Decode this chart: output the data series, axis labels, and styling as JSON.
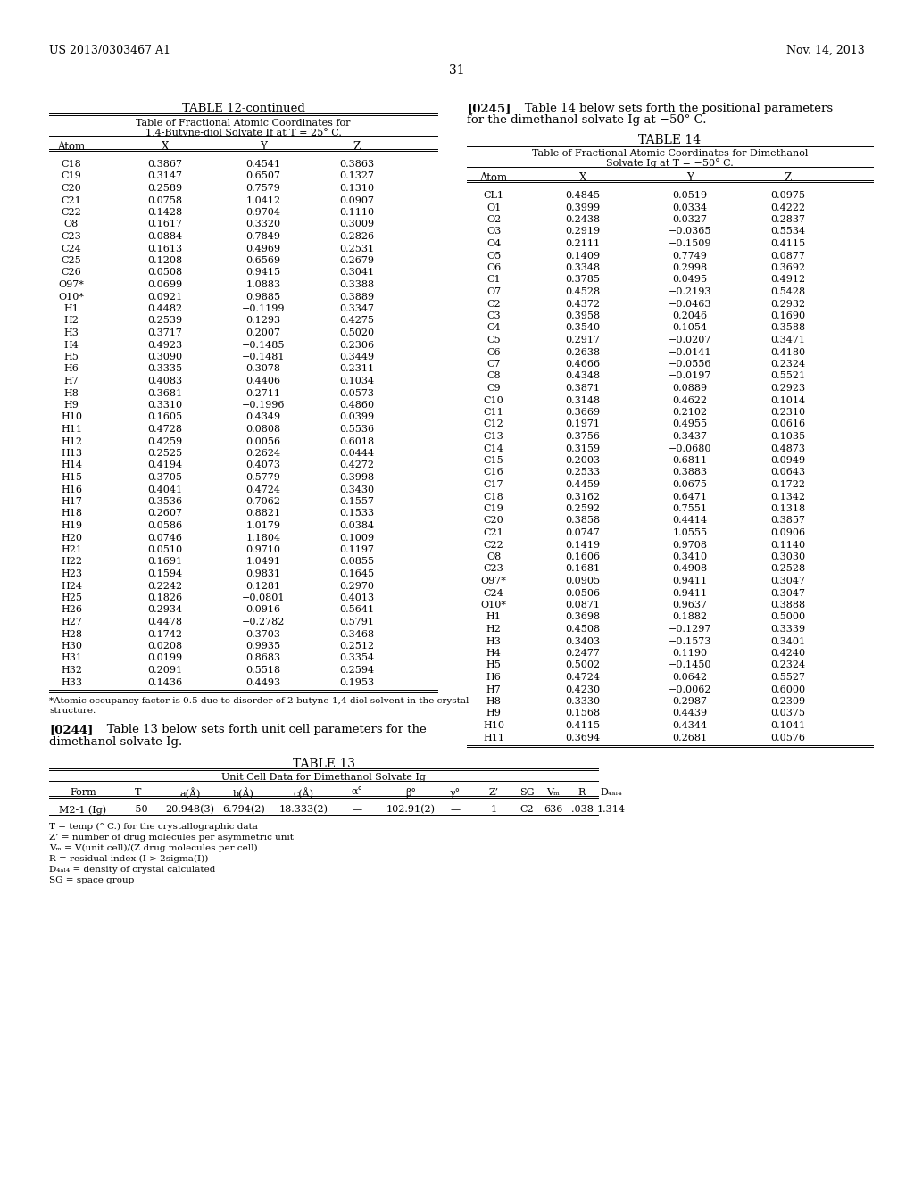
{
  "bg_color": "#ffffff",
  "header_left": "US 2013/0303467 A1",
  "header_right": "Nov. 14, 2013",
  "page_number": "31",
  "table12_title": "TABLE 12-continued",
  "table12_subtitle1": "Table of Fractional Atomic Coordinates for",
  "table12_subtitle2": "1,4-Butyne-diol Solvate If at T = 25° C.",
  "table12_cols": [
    "Atom",
    "X",
    "Y",
    "Z"
  ],
  "table12_data": [
    [
      "C18",
      "0.3867",
      "0.4541",
      "0.3863"
    ],
    [
      "C19",
      "0.3147",
      "0.6507",
      "0.1327"
    ],
    [
      "C20",
      "0.2589",
      "0.7579",
      "0.1310"
    ],
    [
      "C21",
      "0.0758",
      "1.0412",
      "0.0907"
    ],
    [
      "C22",
      "0.1428",
      "0.9704",
      "0.1110"
    ],
    [
      "O8",
      "0.1617",
      "0.3320",
      "0.3009"
    ],
    [
      "C23",
      "0.0884",
      "0.7849",
      "0.2826"
    ],
    [
      "C24",
      "0.1613",
      "0.4969",
      "0.2531"
    ],
    [
      "C25",
      "0.1208",
      "0.6569",
      "0.2679"
    ],
    [
      "C26",
      "0.0508",
      "0.9415",
      "0.3041"
    ],
    [
      "O97*",
      "0.0699",
      "1.0883",
      "0.3388"
    ],
    [
      "O10*",
      "0.0921",
      "0.9885",
      "0.3889"
    ],
    [
      "H1",
      "0.4482",
      "−0.1199",
      "0.3347"
    ],
    [
      "H2",
      "0.2539",
      "0.1293",
      "0.4275"
    ],
    [
      "H3",
      "0.3717",
      "0.2007",
      "0.5020"
    ],
    [
      "H4",
      "0.4923",
      "−0.1485",
      "0.2306"
    ],
    [
      "H5",
      "0.3090",
      "−0.1481",
      "0.3449"
    ],
    [
      "H6",
      "0.3335",
      "0.3078",
      "0.2311"
    ],
    [
      "H7",
      "0.4083",
      "0.4406",
      "0.1034"
    ],
    [
      "H8",
      "0.3681",
      "0.2711",
      "0.0573"
    ],
    [
      "H9",
      "0.3310",
      "−0.1996",
      "0.4860"
    ],
    [
      "H10",
      "0.1605",
      "0.4349",
      "0.0399"
    ],
    [
      "H11",
      "0.4728",
      "0.0808",
      "0.5536"
    ],
    [
      "H12",
      "0.4259",
      "0.0056",
      "0.6018"
    ],
    [
      "H13",
      "0.2525",
      "0.2624",
      "0.0444"
    ],
    [
      "H14",
      "0.4194",
      "0.4073",
      "0.4272"
    ],
    [
      "H15",
      "0.3705",
      "0.5779",
      "0.3998"
    ],
    [
      "H16",
      "0.4041",
      "0.4724",
      "0.3430"
    ],
    [
      "H17",
      "0.3536",
      "0.7062",
      "0.1557"
    ],
    [
      "H18",
      "0.2607",
      "0.8821",
      "0.1533"
    ],
    [
      "H19",
      "0.0586",
      "1.0179",
      "0.0384"
    ],
    [
      "H20",
      "0.0746",
      "1.1804",
      "0.1009"
    ],
    [
      "H21",
      "0.0510",
      "0.9710",
      "0.1197"
    ],
    [
      "H22",
      "0.1691",
      "1.0491",
      "0.0855"
    ],
    [
      "H23",
      "0.1594",
      "0.9831",
      "0.1645"
    ],
    [
      "H24",
      "0.2242",
      "0.1281",
      "0.2970"
    ],
    [
      "H25",
      "0.1826",
      "−0.0801",
      "0.4013"
    ],
    [
      "H26",
      "0.2934",
      "0.0916",
      "0.5641"
    ],
    [
      "H27",
      "0.4478",
      "−0.2782",
      "0.5791"
    ],
    [
      "H28",
      "0.1742",
      "0.3703",
      "0.3468"
    ],
    [
      "H30",
      "0.0208",
      "0.9935",
      "0.2512"
    ],
    [
      "H31",
      "0.0199",
      "0.8683",
      "0.3354"
    ],
    [
      "H32",
      "0.2091",
      "0.5518",
      "0.2594"
    ],
    [
      "H33",
      "0.1436",
      "0.4493",
      "0.1953"
    ]
  ],
  "table12_footnote_line1": "*Atomic occupancy factor is 0.5 due to disorder of 2-butyne-1,4-diol solvent in the crystal",
  "table12_footnote_line2": "structure.",
  "para244_bold": "[0244]",
  "para244_rest1": "   Table 13 below sets forth unit cell parameters for the",
  "para244_rest2": "dimethanol solvate Ig.",
  "table13_title": "TABLE 13",
  "table13_subtitle": "Unit Cell Data for Dimethanol Solvate Ig",
  "table13_cols": [
    "Form",
    "T",
    "a(Å)",
    "b(Å)",
    "c(Å)",
    "α°",
    "β°",
    "γ°",
    "Z’",
    "SG",
    "Vₘ",
    "R",
    "D₄ₐₗ₄"
  ],
  "table13_data": [
    [
      "M2-1 (Ig)",
      "−50",
      "20.948(3)",
      "6.794(2)",
      "18.333(2)",
      "—",
      "102.91(2)",
      "—",
      "1",
      "C2",
      "636",
      ".038",
      "1.314"
    ]
  ],
  "table13_footnotes": [
    "T = temp (° C.) for the crystallographic data",
    "Z’ = number of drug molecules per asymmetric unit",
    "Vₘ = V(unit cell)/(Z drug molecules per cell)",
    "R = residual index (I > 2sigma(I))",
    "D₄ₐₗ₄ = density of crystal calculated",
    "SG = space group"
  ],
  "para245_bold": "[0245]",
  "para245_rest1": "   Table 14 below sets forth the positional parameters",
  "para245_rest2": "for the dimethanol solvate Ig at −50° C.",
  "table14_title": "TABLE 14",
  "table14_subtitle1": "Table of Fractional Atomic Coordinates for Dimethanol",
  "table14_subtitle2": "Solvate Ig at T = −50° C.",
  "table14_cols": [
    "Atom",
    "X",
    "Y",
    "Z"
  ],
  "table14_data": [
    [
      "CL1",
      "0.4845",
      "0.0519",
      "0.0975"
    ],
    [
      "O1",
      "0.3999",
      "0.0334",
      "0.4222"
    ],
    [
      "O2",
      "0.2438",
      "0.0327",
      "0.2837"
    ],
    [
      "O3",
      "0.2919",
      "−0.0365",
      "0.5534"
    ],
    [
      "O4",
      "0.2111",
      "−0.1509",
      "0.4115"
    ],
    [
      "O5",
      "0.1409",
      "0.7749",
      "0.0877"
    ],
    [
      "O6",
      "0.3348",
      "0.2998",
      "0.3692"
    ],
    [
      "C1",
      "0.3785",
      "0.0495",
      "0.4912"
    ],
    [
      "O7",
      "0.4528",
      "−0.2193",
      "0.5428"
    ],
    [
      "C2",
      "0.4372",
      "−0.0463",
      "0.2932"
    ],
    [
      "C3",
      "0.3958",
      "0.2046",
      "0.1690"
    ],
    [
      "C4",
      "0.3540",
      "0.1054",
      "0.3588"
    ],
    [
      "C5",
      "0.2917",
      "−0.0207",
      "0.3471"
    ],
    [
      "C6",
      "0.2638",
      "−0.0141",
      "0.4180"
    ],
    [
      "C7",
      "0.4666",
      "−0.0556",
      "0.2324"
    ],
    [
      "C8",
      "0.4348",
      "−0.0197",
      "0.5521"
    ],
    [
      "C9",
      "0.3871",
      "0.0889",
      "0.2923"
    ],
    [
      "C10",
      "0.3148",
      "0.4622",
      "0.1014"
    ],
    [
      "C11",
      "0.3669",
      "0.2102",
      "0.2310"
    ],
    [
      "C12",
      "0.1971",
      "0.4955",
      "0.0616"
    ],
    [
      "C13",
      "0.3756",
      "0.3437",
      "0.1035"
    ],
    [
      "C14",
      "0.3159",
      "−0.0680",
      "0.4873"
    ],
    [
      "C15",
      "0.2003",
      "0.6811",
      "0.0949"
    ],
    [
      "C16",
      "0.2533",
      "0.3883",
      "0.0643"
    ],
    [
      "C17",
      "0.4459",
      "0.0675",
      "0.1722"
    ],
    [
      "C18",
      "0.3162",
      "0.6471",
      "0.1342"
    ],
    [
      "C19",
      "0.2592",
      "0.7551",
      "0.1318"
    ],
    [
      "C20",
      "0.3858",
      "0.4414",
      "0.3857"
    ],
    [
      "C21",
      "0.0747",
      "1.0555",
      "0.0906"
    ],
    [
      "C22",
      "0.1419",
      "0.9708",
      "0.1140"
    ],
    [
      "O8",
      "0.1606",
      "0.3410",
      "0.3030"
    ],
    [
      "C23",
      "0.1681",
      "0.4908",
      "0.2528"
    ],
    [
      "O97*",
      "0.0905",
      "0.9411",
      "0.3047"
    ],
    [
      "C24",
      "0.0506",
      "0.9411",
      "0.3047"
    ],
    [
      "O10*",
      "0.0871",
      "0.9637",
      "0.3888"
    ],
    [
      "H1",
      "0.3698",
      "0.1882",
      "0.5000"
    ],
    [
      "H2",
      "0.4508",
      "−0.1297",
      "0.3339"
    ],
    [
      "H3",
      "0.3403",
      "−0.1573",
      "0.3401"
    ],
    [
      "H4",
      "0.2477",
      "0.1190",
      "0.4240"
    ],
    [
      "H5",
      "0.5002",
      "−0.1450",
      "0.2324"
    ],
    [
      "H6",
      "0.4724",
      "0.0642",
      "0.5527"
    ],
    [
      "H7",
      "0.4230",
      "−0.0062",
      "0.6000"
    ],
    [
      "H8",
      "0.3330",
      "0.2987",
      "0.2309"
    ],
    [
      "H9",
      "0.1568",
      "0.4439",
      "0.0375"
    ],
    [
      "H10",
      "0.4115",
      "0.4344",
      "0.1041"
    ],
    [
      "H11",
      "0.3694",
      "0.2681",
      "0.0576"
    ]
  ]
}
